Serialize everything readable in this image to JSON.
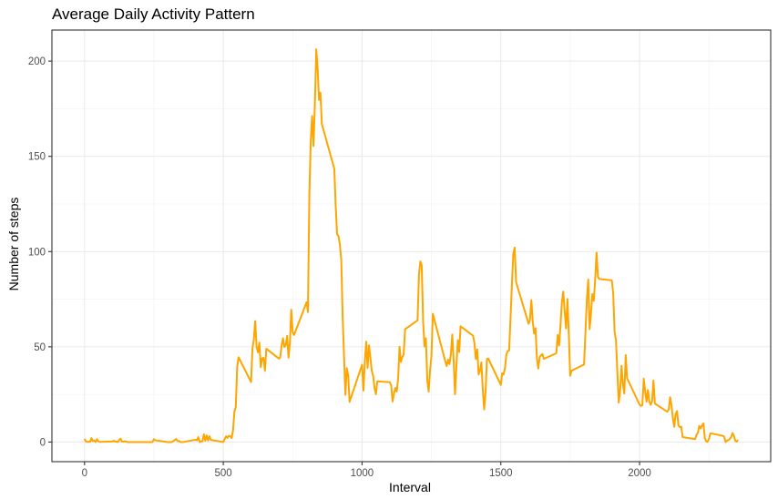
{
  "chart_data": {
    "type": "line",
    "title": "Average Daily Activity Pattern",
    "xlabel": "Interval",
    "ylabel": "Number of steps",
    "xlim": [
      -117.5,
      2472.5
    ],
    "ylim": [
      -10.3,
      216.3
    ],
    "x_ticks": [
      0,
      500,
      1000,
      1500,
      2000
    ],
    "y_ticks": [
      0,
      50,
      100,
      150,
      200
    ],
    "grid": true,
    "line_color": "#FFA500",
    "series": [
      {
        "values": [
          [
            0,
            1.7
          ],
          [
            5,
            0.3
          ],
          [
            10,
            0.1
          ],
          [
            15,
            0.2
          ],
          [
            20,
            0.1
          ],
          [
            25,
            2.1
          ],
          [
            30,
            0.5
          ],
          [
            35,
            0.9
          ],
          [
            40,
            0
          ],
          [
            45,
            1.5
          ],
          [
            50,
            0.3
          ],
          [
            55,
            0.1
          ],
          [
            100,
            0.3
          ],
          [
            105,
            0.7
          ],
          [
            110,
            0.2
          ],
          [
            115,
            0.3
          ],
          [
            120,
            0
          ],
          [
            125,
            1.1
          ],
          [
            130,
            1.8
          ],
          [
            135,
            0.2
          ],
          [
            140,
            0.2
          ],
          [
            145,
            0.4
          ],
          [
            150,
            0.3
          ],
          [
            155,
            0
          ],
          [
            200,
            0
          ],
          [
            215,
            0
          ],
          [
            230,
            0
          ],
          [
            245,
            0
          ],
          [
            250,
            1.5
          ],
          [
            255,
            0.9
          ],
          [
            300,
            0
          ],
          [
            315,
            0
          ],
          [
            330,
            1.6
          ],
          [
            335,
            0.6
          ],
          [
            340,
            0.5
          ],
          [
            345,
            0.1
          ],
          [
            350,
            0
          ],
          [
            355,
            0
          ],
          [
            400,
            1.2
          ],
          [
            405,
            0.9
          ],
          [
            410,
            2.6
          ],
          [
            415,
            0
          ],
          [
            420,
            0.3
          ],
          [
            425,
            0.4
          ],
          [
            430,
            4.1
          ],
          [
            435,
            0.7
          ],
          [
            440,
            3.5
          ],
          [
            445,
            0.8
          ],
          [
            450,
            3.1
          ],
          [
            455,
            1.1
          ],
          [
            500,
            0
          ],
          [
            505,
            1.6
          ],
          [
            510,
            3.0
          ],
          [
            515,
            2.2
          ],
          [
            520,
            3.3
          ],
          [
            525,
            3.0
          ],
          [
            530,
            2.1
          ],
          [
            535,
            6.1
          ],
          [
            540,
            16.0
          ],
          [
            545,
            18.3
          ],
          [
            550,
            39.5
          ],
          [
            555,
            44.5
          ],
          [
            600,
            31.5
          ],
          [
            605,
            49.3
          ],
          [
            610,
            53.8
          ],
          [
            615,
            63.5
          ],
          [
            620,
            50.0
          ],
          [
            625,
            47.1
          ],
          [
            630,
            52.2
          ],
          [
            635,
            39.3
          ],
          [
            640,
            44.0
          ],
          [
            645,
            44.2
          ],
          [
            650,
            37.4
          ],
          [
            655,
            49.0
          ],
          [
            700,
            43.8
          ],
          [
            705,
            44.4
          ],
          [
            710,
            50.5
          ],
          [
            715,
            54.5
          ],
          [
            720,
            49.9
          ],
          [
            725,
            50.9
          ],
          [
            730,
            55.7
          ],
          [
            735,
            44.3
          ],
          [
            740,
            52.3
          ],
          [
            745,
            69.5
          ],
          [
            750,
            57.8
          ],
          [
            755,
            56.2
          ],
          [
            800,
            73.4
          ],
          [
            805,
            68.2
          ],
          [
            810,
            129.4
          ],
          [
            815,
            157.5
          ],
          [
            820,
            171.2
          ],
          [
            825,
            155.4
          ],
          [
            830,
            177.3
          ],
          [
            835,
            206.2
          ],
          [
            840,
            195.9
          ],
          [
            845,
            179.6
          ],
          [
            850,
            183.4
          ],
          [
            855,
            167.0
          ],
          [
            900,
            143.5
          ],
          [
            905,
            124.0
          ],
          [
            910,
            109.1
          ],
          [
            915,
            108.1
          ],
          [
            920,
            103.7
          ],
          [
            925,
            95.9
          ],
          [
            930,
            66.2
          ],
          [
            935,
            45.2
          ],
          [
            940,
            24.8
          ],
          [
            945,
            38.8
          ],
          [
            950,
            34.9
          ],
          [
            955,
            21.1
          ],
          [
            1000,
            40.6
          ],
          [
            1005,
            27.0
          ],
          [
            1010,
            42.4
          ],
          [
            1015,
            52.7
          ],
          [
            1020,
            38.9
          ],
          [
            1025,
            50.8
          ],
          [
            1030,
            44.3
          ],
          [
            1035,
            37.4
          ],
          [
            1040,
            34.7
          ],
          [
            1045,
            28.3
          ],
          [
            1050,
            25.1
          ],
          [
            1055,
            31.9
          ],
          [
            1100,
            31.4
          ],
          [
            1105,
            29.7
          ],
          [
            1110,
            21.3
          ],
          [
            1115,
            25.5
          ],
          [
            1120,
            28.4
          ],
          [
            1125,
            26.5
          ],
          [
            1130,
            33.4
          ],
          [
            1135,
            50.0
          ],
          [
            1140,
            42.0
          ],
          [
            1145,
            44.6
          ],
          [
            1150,
            46.0
          ],
          [
            1155,
            59.2
          ],
          [
            1200,
            63.9
          ],
          [
            1205,
            87.7
          ],
          [
            1210,
            94.8
          ],
          [
            1215,
            92.8
          ],
          [
            1220,
            63.4
          ],
          [
            1225,
            50.2
          ],
          [
            1230,
            54.5
          ],
          [
            1235,
            32.4
          ],
          [
            1240,
            26.5
          ],
          [
            1245,
            37.7
          ],
          [
            1250,
            45.1
          ],
          [
            1255,
            67.3
          ],
          [
            1300,
            42.3
          ],
          [
            1305,
            39.9
          ],
          [
            1310,
            43.3
          ],
          [
            1315,
            40.9
          ],
          [
            1320,
            46.2
          ],
          [
            1325,
            56.4
          ],
          [
            1330,
            42.8
          ],
          [
            1335,
            25.1
          ],
          [
            1340,
            39.9
          ],
          [
            1345,
            53.5
          ],
          [
            1350,
            47.3
          ],
          [
            1355,
            60.8
          ],
          [
            1400,
            55.8
          ],
          [
            1405,
            51.9
          ],
          [
            1410,
            43.6
          ],
          [
            1415,
            48.7
          ],
          [
            1420,
            35.5
          ],
          [
            1425,
            37.5
          ],
          [
            1430,
            41.8
          ],
          [
            1435,
            27.5
          ],
          [
            1440,
            17.1
          ],
          [
            1445,
            26.1
          ],
          [
            1450,
            43.6
          ],
          [
            1455,
            43.8
          ],
          [
            1500,
            30.0
          ],
          [
            1505,
            36.1
          ],
          [
            1510,
            35.5
          ],
          [
            1515,
            38.8
          ],
          [
            1520,
            46.0
          ],
          [
            1525,
            47.8
          ],
          [
            1530,
            48.1
          ],
          [
            1535,
            65.3
          ],
          [
            1540,
            82.9
          ],
          [
            1545,
            98.7
          ],
          [
            1550,
            102.1
          ],
          [
            1555,
            84.0
          ],
          [
            1600,
            62.1
          ],
          [
            1605,
            64.1
          ],
          [
            1610,
            74.5
          ],
          [
            1615,
            63.2
          ],
          [
            1620,
            56.9
          ],
          [
            1625,
            59.8
          ],
          [
            1630,
            43.9
          ],
          [
            1635,
            38.6
          ],
          [
            1640,
            44.7
          ],
          [
            1645,
            45.5
          ],
          [
            1650,
            46.2
          ],
          [
            1655,
            43.7
          ],
          [
            1700,
            46.6
          ],
          [
            1705,
            56.3
          ],
          [
            1710,
            50.7
          ],
          [
            1715,
            61.2
          ],
          [
            1720,
            73.4
          ],
          [
            1725,
            79.0
          ],
          [
            1730,
            68.9
          ],
          [
            1735,
            59.7
          ],
          [
            1740,
            75.1
          ],
          [
            1745,
            56.5
          ],
          [
            1750,
            34.8
          ],
          [
            1755,
            37.5
          ],
          [
            1800,
            40.7
          ],
          [
            1805,
            58.0
          ],
          [
            1810,
            74.7
          ],
          [
            1815,
            85.3
          ],
          [
            1820,
            59.3
          ],
          [
            1825,
            67.8
          ],
          [
            1830,
            77.7
          ],
          [
            1835,
            74.2
          ],
          [
            1840,
            85.3
          ],
          [
            1845,
            99.5
          ],
          [
            1850,
            86.6
          ],
          [
            1855,
            85.6
          ],
          [
            1900,
            84.9
          ],
          [
            1905,
            77.8
          ],
          [
            1910,
            58.0
          ],
          [
            1915,
            53.4
          ],
          [
            1920,
            36.3
          ],
          [
            1925,
            20.7
          ],
          [
            1930,
            27.4
          ],
          [
            1935,
            40.0
          ],
          [
            1940,
            30.2
          ],
          [
            1945,
            25.5
          ],
          [
            1950,
            45.7
          ],
          [
            1955,
            33.5
          ],
          [
            2000,
            19.6
          ],
          [
            2005,
            19.0
          ],
          [
            2010,
            19.3
          ],
          [
            2015,
            33.3
          ],
          [
            2020,
            26.8
          ],
          [
            2025,
            21.2
          ],
          [
            2030,
            27.3
          ],
          [
            2035,
            21.3
          ],
          [
            2040,
            19.5
          ],
          [
            2045,
            21.3
          ],
          [
            2050,
            32.3
          ],
          [
            2055,
            20.2
          ],
          [
            2100,
            15.9
          ],
          [
            2105,
            17.2
          ],
          [
            2110,
            23.5
          ],
          [
            2115,
            19.2
          ],
          [
            2120,
            12.5
          ],
          [
            2125,
            8.0
          ],
          [
            2130,
            14.7
          ],
          [
            2135,
            16.3
          ],
          [
            2140,
            8.7
          ],
          [
            2145,
            7.8
          ],
          [
            2150,
            8.1
          ],
          [
            2155,
            2.6
          ],
          [
            2200,
            1.5
          ],
          [
            2205,
            3.7
          ],
          [
            2210,
            4.8
          ],
          [
            2215,
            8.5
          ],
          [
            2220,
            7.1
          ],
          [
            2225,
            8.7
          ],
          [
            2230,
            9.8
          ],
          [
            2235,
            2.2
          ],
          [
            2240,
            0.3
          ],
          [
            2245,
            0.1
          ],
          [
            2250,
            1.6
          ],
          [
            2255,
            4.6
          ],
          [
            2300,
            3.3
          ],
          [
            2305,
            2.8
          ],
          [
            2310,
            0
          ],
          [
            2315,
            0.8
          ],
          [
            2320,
            1.0
          ],
          [
            2325,
            1.6
          ],
          [
            2330,
            2.6
          ],
          [
            2335,
            4.7
          ],
          [
            2340,
            3.3
          ],
          [
            2345,
            0.6
          ],
          [
            2350,
            0.2
          ],
          [
            2355,
            1.1
          ]
        ]
      }
    ]
  }
}
